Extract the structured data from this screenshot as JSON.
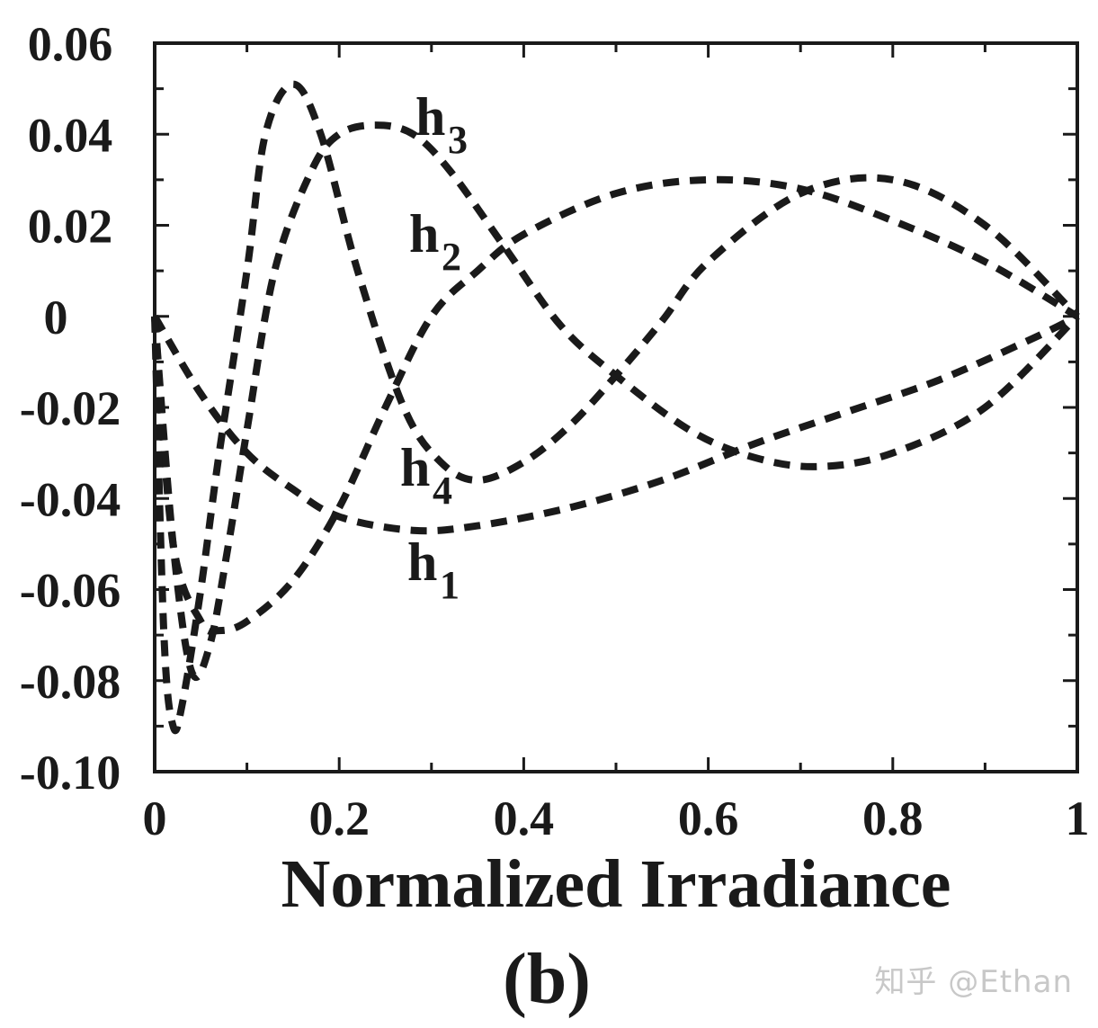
{
  "chart_data": {
    "type": "line",
    "title": "",
    "xlabel": "Normalized Irradiance",
    "ylabel": "",
    "subfigure_label": "(b)",
    "xlim": [
      0,
      1
    ],
    "ylim": [
      -0.1,
      0.06
    ],
    "x_ticks": [
      "0",
      "0.2",
      "0.4",
      "0.6",
      "0.8",
      "1"
    ],
    "y_ticks": [
      "0.06",
      "0.04",
      "0.02",
      "0",
      "-0.02",
      "-0.04",
      "-0.06",
      "-0.08",
      "-0.10"
    ],
    "line_style": "dashed",
    "line_color": "#1a1a1a",
    "series": [
      {
        "name": "h1",
        "label_main": "h",
        "label_sub": "1",
        "x": [
          0,
          0.05,
          0.1,
          0.15,
          0.2,
          0.28,
          0.35,
          0.45,
          0.55,
          0.65,
          0.75,
          0.85,
          0.95,
          1.0
        ],
        "y": [
          0,
          -0.017,
          -0.03,
          -0.038,
          -0.044,
          -0.047,
          -0.046,
          -0.042,
          -0.036,
          -0.028,
          -0.021,
          -0.014,
          -0.005,
          0
        ]
      },
      {
        "name": "h2",
        "label_main": "h",
        "label_sub": "2",
        "x": [
          0,
          0.02,
          0.05,
          0.07,
          0.1,
          0.15,
          0.2,
          0.25,
          0.3,
          0.35,
          0.4,
          0.5,
          0.6,
          0.7,
          0.8,
          0.9,
          1.0
        ],
        "y": [
          0,
          -0.05,
          -0.067,
          -0.069,
          -0.067,
          -0.058,
          -0.042,
          -0.02,
          0.0,
          0.01,
          0.018,
          0.027,
          0.03,
          0.028,
          0.021,
          0.012,
          0
        ]
      },
      {
        "name": "h3",
        "label_main": "h",
        "label_sub": "3",
        "x": [
          0,
          0.02,
          0.04,
          0.06,
          0.08,
          0.1,
          0.13,
          0.17,
          0.2,
          0.24,
          0.28,
          0.32,
          0.38,
          0.44,
          0.5,
          0.58,
          0.65,
          0.72,
          0.8,
          0.9,
          1.0
        ],
        "y": [
          0,
          -0.05,
          -0.078,
          -0.072,
          -0.05,
          -0.025,
          0.01,
          0.032,
          0.04,
          0.042,
          0.04,
          0.032,
          0.015,
          -0.002,
          -0.013,
          -0.025,
          -0.031,
          -0.033,
          -0.03,
          -0.02,
          0
        ]
      },
      {
        "name": "h4",
        "label_main": "h",
        "label_sub": "4",
        "x": [
          0,
          0.01,
          0.02,
          0.03,
          0.05,
          0.07,
          0.1,
          0.12,
          0.15,
          0.18,
          0.22,
          0.27,
          0.31,
          0.35,
          0.4,
          0.45,
          0.5,
          0.55,
          0.6,
          0.7,
          0.8,
          0.9,
          1.0
        ],
        "y": [
          0,
          -0.07,
          -0.09,
          -0.085,
          -0.06,
          -0.03,
          0.01,
          0.04,
          0.051,
          0.04,
          0.01,
          -0.02,
          -0.032,
          -0.036,
          -0.032,
          -0.024,
          -0.013,
          -0.001,
          0.012,
          0.027,
          0.03,
          0.02,
          0
        ]
      }
    ],
    "watermark": "知乎 @Ethan"
  }
}
